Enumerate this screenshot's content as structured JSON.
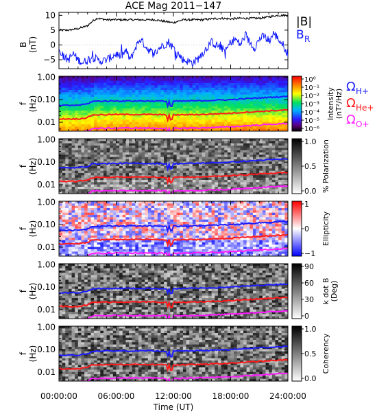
{
  "title": "ACE Mag 2011−147",
  "time_axis": {
    "xlabel": "Time (UT)",
    "range_hours": [
      0,
      24
    ],
    "tick_labels": [
      "00:00:00",
      "06:00:00",
      "12:00:00",
      "18:00:00",
      "24:00:00"
    ]
  },
  "freq_axis": {
    "ylabel_line1": "f",
    "ylabel_line2": "(Hz)",
    "scale": "log",
    "range_hz": [
      0.004,
      1.1
    ],
    "tick_labels": [
      "1.00",
      "0.10",
      "0.01"
    ]
  },
  "colors": {
    "B_total": "#000000",
    "B_R": "#0a14ff",
    "omega_H": "#1b1bff",
    "omega_He": "#ff1a1a",
    "omega_O": "#ff1aff"
  },
  "legend_B": {
    "total": "|B|",
    "radial": "B",
    "radial_sub": "R"
  },
  "legend_gyro": [
    {
      "symbol": "Ω",
      "sub": "H+",
      "color": "#1b1bff"
    },
    {
      "symbol": "Ω",
      "sub": "He+",
      "color": "#ff1a1a"
    },
    {
      "symbol": "Ω",
      "sub": "O+",
      "color": "#ff1aff"
    }
  ],
  "panels": [
    {
      "id": "bfield",
      "ylabel_line1": "B",
      "ylabel_line2": "(nT)"
    },
    {
      "id": "intensity",
      "colorbar_label_line1": "Intensity",
      "colorbar_label_line2": "(nT²/Hz)",
      "colorbar_ticks": [
        "10⁰",
        "10⁻¹",
        "10⁻²",
        "10⁻³",
        "10⁻⁴",
        "10⁻⁵",
        "10⁻⁶"
      ]
    },
    {
      "id": "polarization",
      "colorbar_label_line1": "% Polarization",
      "colorbar_ticks": [
        "1.0",
        "0.5",
        "0.0"
      ]
    },
    {
      "id": "ellipticity",
      "colorbar_label_line1": "Ellipticity",
      "colorbar_ticks": [
        "1",
        "0",
        "−1"
      ]
    },
    {
      "id": "kdotb",
      "colorbar_label_line1": "k dot B",
      "colorbar_label_line2": "(Deg)",
      "colorbar_ticks": [
        "90",
        "60",
        "30",
        "0"
      ]
    },
    {
      "id": "coherency",
      "colorbar_label_line1": "Coherency",
      "colorbar_ticks": [
        "1.0",
        "0.5",
        "0.0"
      ]
    }
  ],
  "chart_data": [
    {
      "type": "line",
      "title": "ACE Mag 2011−147",
      "ylabel": "B (nT)",
      "xlim_hours": [
        0,
        24
      ],
      "ylim": [
        -8,
        11
      ],
      "yticks": [
        10,
        5,
        0,
        -5
      ],
      "series": [
        {
          "name": "|B|",
          "x": [
            0,
            1,
            2,
            3,
            3.5,
            4,
            5,
            6,
            7,
            8,
            9,
            10,
            11,
            12,
            13,
            14,
            15,
            16,
            17,
            18,
            19,
            20,
            21,
            22,
            23,
            24
          ],
          "values": [
            5,
            5,
            5.5,
            6.5,
            8,
            9,
            8.5,
            8.5,
            8.5,
            8.5,
            8.5,
            8.5,
            8,
            7.5,
            8.5,
            8.5,
            8.5,
            8.8,
            9,
            8.8,
            9,
            9,
            9,
            9.5,
            10,
            10
          ]
        },
        {
          "name": "B_R",
          "x": [
            0,
            0.5,
            1,
            1.5,
            2,
            2.5,
            3,
            3.5,
            4,
            4.5,
            5,
            5.5,
            6,
            6.5,
            7,
            7.5,
            8,
            8.5,
            9,
            9.5,
            10,
            10.5,
            11,
            11.5,
            12,
            12.5,
            13,
            13.5,
            14,
            14.5,
            15,
            15.5,
            16,
            16.5,
            17,
            17.5,
            18,
            18.5,
            19,
            19.5,
            20,
            20.5,
            21,
            21.5,
            22,
            22.5,
            23,
            23.5,
            24
          ],
          "values": [
            -2,
            -4,
            -5,
            -3,
            -5,
            -6,
            -5,
            -4,
            -5,
            -5.5,
            -5,
            -4,
            -3,
            -4,
            -2,
            -5,
            -1,
            2,
            0,
            -2,
            -3,
            -1,
            0,
            1,
            -1,
            -3,
            -5,
            -5.5,
            -6,
            -5,
            -3,
            -1,
            1,
            0,
            -1,
            -2,
            1,
            2,
            0,
            3,
            1,
            -1,
            2,
            3,
            1,
            4,
            2,
            0,
            -3
          ]
        }
      ]
    },
    {
      "type": "heatmap",
      "name": "intensity",
      "xlim_hours": [
        0,
        24
      ],
      "ylim_hz": [
        0.004,
        1.1
      ],
      "color_range": [
        "1e-6",
        "1e0"
      ],
      "gyro_lines": [
        {
          "name": "ΩH+",
          "x": [
            0,
            2,
            3,
            3.5,
            6,
            9,
            12,
            15,
            18,
            21,
            24
          ],
          "values": [
            0.055,
            0.057,
            0.065,
            0.085,
            0.088,
            0.088,
            0.085,
            0.09,
            0.1,
            0.12,
            0.14
          ]
        },
        {
          "name": "ΩHe+",
          "x": [
            0,
            2,
            3,
            3.5,
            6,
            9,
            12,
            15,
            18,
            21,
            24
          ],
          "values": [
            0.014,
            0.014,
            0.016,
            0.021,
            0.022,
            0.022,
            0.021,
            0.022,
            0.025,
            0.03,
            0.035
          ]
        },
        {
          "name": "ΩO+",
          "x": [
            0,
            2,
            3,
            3.5,
            6,
            9,
            12,
            15,
            18,
            21,
            24
          ],
          "values": [
            0.0035,
            0.0036,
            0.004,
            0.0052,
            0.0055,
            0.0055,
            0.0053,
            0.0056,
            0.0062,
            0.0075,
            0.0088
          ]
        }
      ]
    },
    {
      "type": "heatmap",
      "name": "polarization",
      "xlim_hours": [
        0,
        24
      ],
      "ylim_hz": [
        0.004,
        1.1
      ],
      "color_range": [
        0,
        1
      ]
    },
    {
      "type": "heatmap",
      "name": "ellipticity",
      "xlim_hours": [
        0,
        24
      ],
      "ylim_hz": [
        0.004,
        1.1
      ],
      "color_range": [
        -1,
        1
      ]
    },
    {
      "type": "heatmap",
      "name": "k dot B",
      "xlim_hours": [
        0,
        24
      ],
      "ylim_hz": [
        0.004,
        1.1
      ],
      "color_range": [
        0,
        90
      ]
    },
    {
      "type": "heatmap",
      "name": "coherency",
      "xlim_hours": [
        0,
        24
      ],
      "ylim_hz": [
        0.004,
        1.1
      ],
      "color_range": [
        0,
        1
      ]
    }
  ]
}
